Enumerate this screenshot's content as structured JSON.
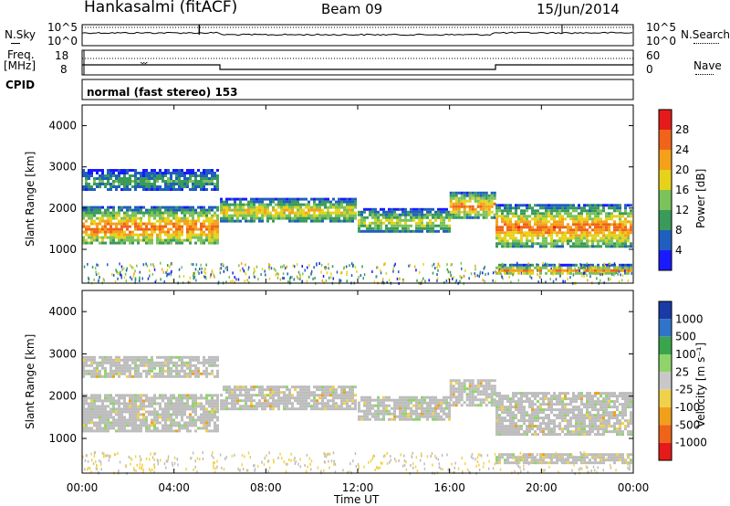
{
  "header": {
    "station": "Hankasalmi (fitACF)",
    "beam": "Beam 09",
    "date": "15/Jun/2014"
  },
  "noise_panel": {
    "left_label": "N.Sky",
    "left_ticks": [
      "10^5",
      "10^0"
    ],
    "right_label": "N.Search",
    "right_ticks": [
      "10^5",
      "10^0"
    ]
  },
  "freq_panel": {
    "left_label_line1": "Freq.",
    "left_label_line2": "[MHz]",
    "left_ticks": [
      "18",
      "8"
    ],
    "right_label": "Nave",
    "right_ticks": [
      "60",
      "0"
    ]
  },
  "cpid": {
    "label": "CPID",
    "program": "normal (fast stereo) 153"
  },
  "colors": {
    "power": [
      "#1a1aff",
      "#1f5fbf",
      "#3a9a5a",
      "#7ac25a",
      "#e6d21a",
      "#f5a01a",
      "#f0641a",
      "#e61a1a"
    ],
    "velocity": [
      "#1a3aa6",
      "#2f74c8",
      "#3aa64c",
      "#8fd46a",
      "#c8c8c8",
      "#f0d24a",
      "#f0a01a",
      "#f0641a",
      "#e61a1a"
    ],
    "ground_scatter": "#bdbdbd"
  },
  "chart_data": [
    {
      "type": "heatmap",
      "quantity": "Power",
      "ylabel": "Slant Range [km]",
      "xlabel": "",
      "x_range_hours": [
        0,
        24
      ],
      "ylim": [
        180,
        4500
      ],
      "yticks": [
        1000,
        2000,
        3000,
        4000
      ],
      "xticks": [
        "00:00",
        "04:00",
        "08:00",
        "12:00",
        "16:00",
        "20:00",
        "00:00"
      ],
      "colorbar": {
        "label": "Power [dB]",
        "ticks": [
          4,
          8,
          12,
          16,
          20,
          24,
          28
        ]
      },
      "echo_bands": [
        {
          "t": [
            0,
            6
          ],
          "range": [
            1150,
            2050
          ],
          "peak_dB": 28
        },
        {
          "t": [
            0,
            6
          ],
          "range": [
            2450,
            2950
          ],
          "peak_dB": 14
        },
        {
          "t": [
            6,
            12
          ],
          "range": [
            1700,
            2250
          ],
          "peak_dB": 22
        },
        {
          "t": [
            12,
            16
          ],
          "range": [
            1450,
            2000
          ],
          "peak_dB": 20
        },
        {
          "t": [
            16,
            18
          ],
          "range": [
            1800,
            2400
          ],
          "peak_dB": 28
        },
        {
          "t": [
            18,
            24
          ],
          "range": [
            1100,
            2100
          ],
          "peak_dB": 28
        },
        {
          "t": [
            18,
            24
          ],
          "range": [
            400,
            650
          ],
          "peak_dB": 26
        }
      ]
    },
    {
      "type": "heatmap",
      "quantity": "Velocity",
      "ylabel": "Slant Range [km]",
      "xlabel": "Time UT",
      "x_range_hours": [
        0,
        24
      ],
      "ylim": [
        180,
        4500
      ],
      "yticks": [
        1000,
        2000,
        3000,
        4000
      ],
      "xticks": [
        "00:00",
        "04:00",
        "08:00",
        "12:00",
        "16:00",
        "20:00",
        "00:00"
      ],
      "colorbar": {
        "label": "Velocity [m s⁻¹]",
        "ticks": [
          1000,
          500,
          100,
          25,
          -25,
          -100,
          -500,
          -1000
        ]
      }
    }
  ]
}
